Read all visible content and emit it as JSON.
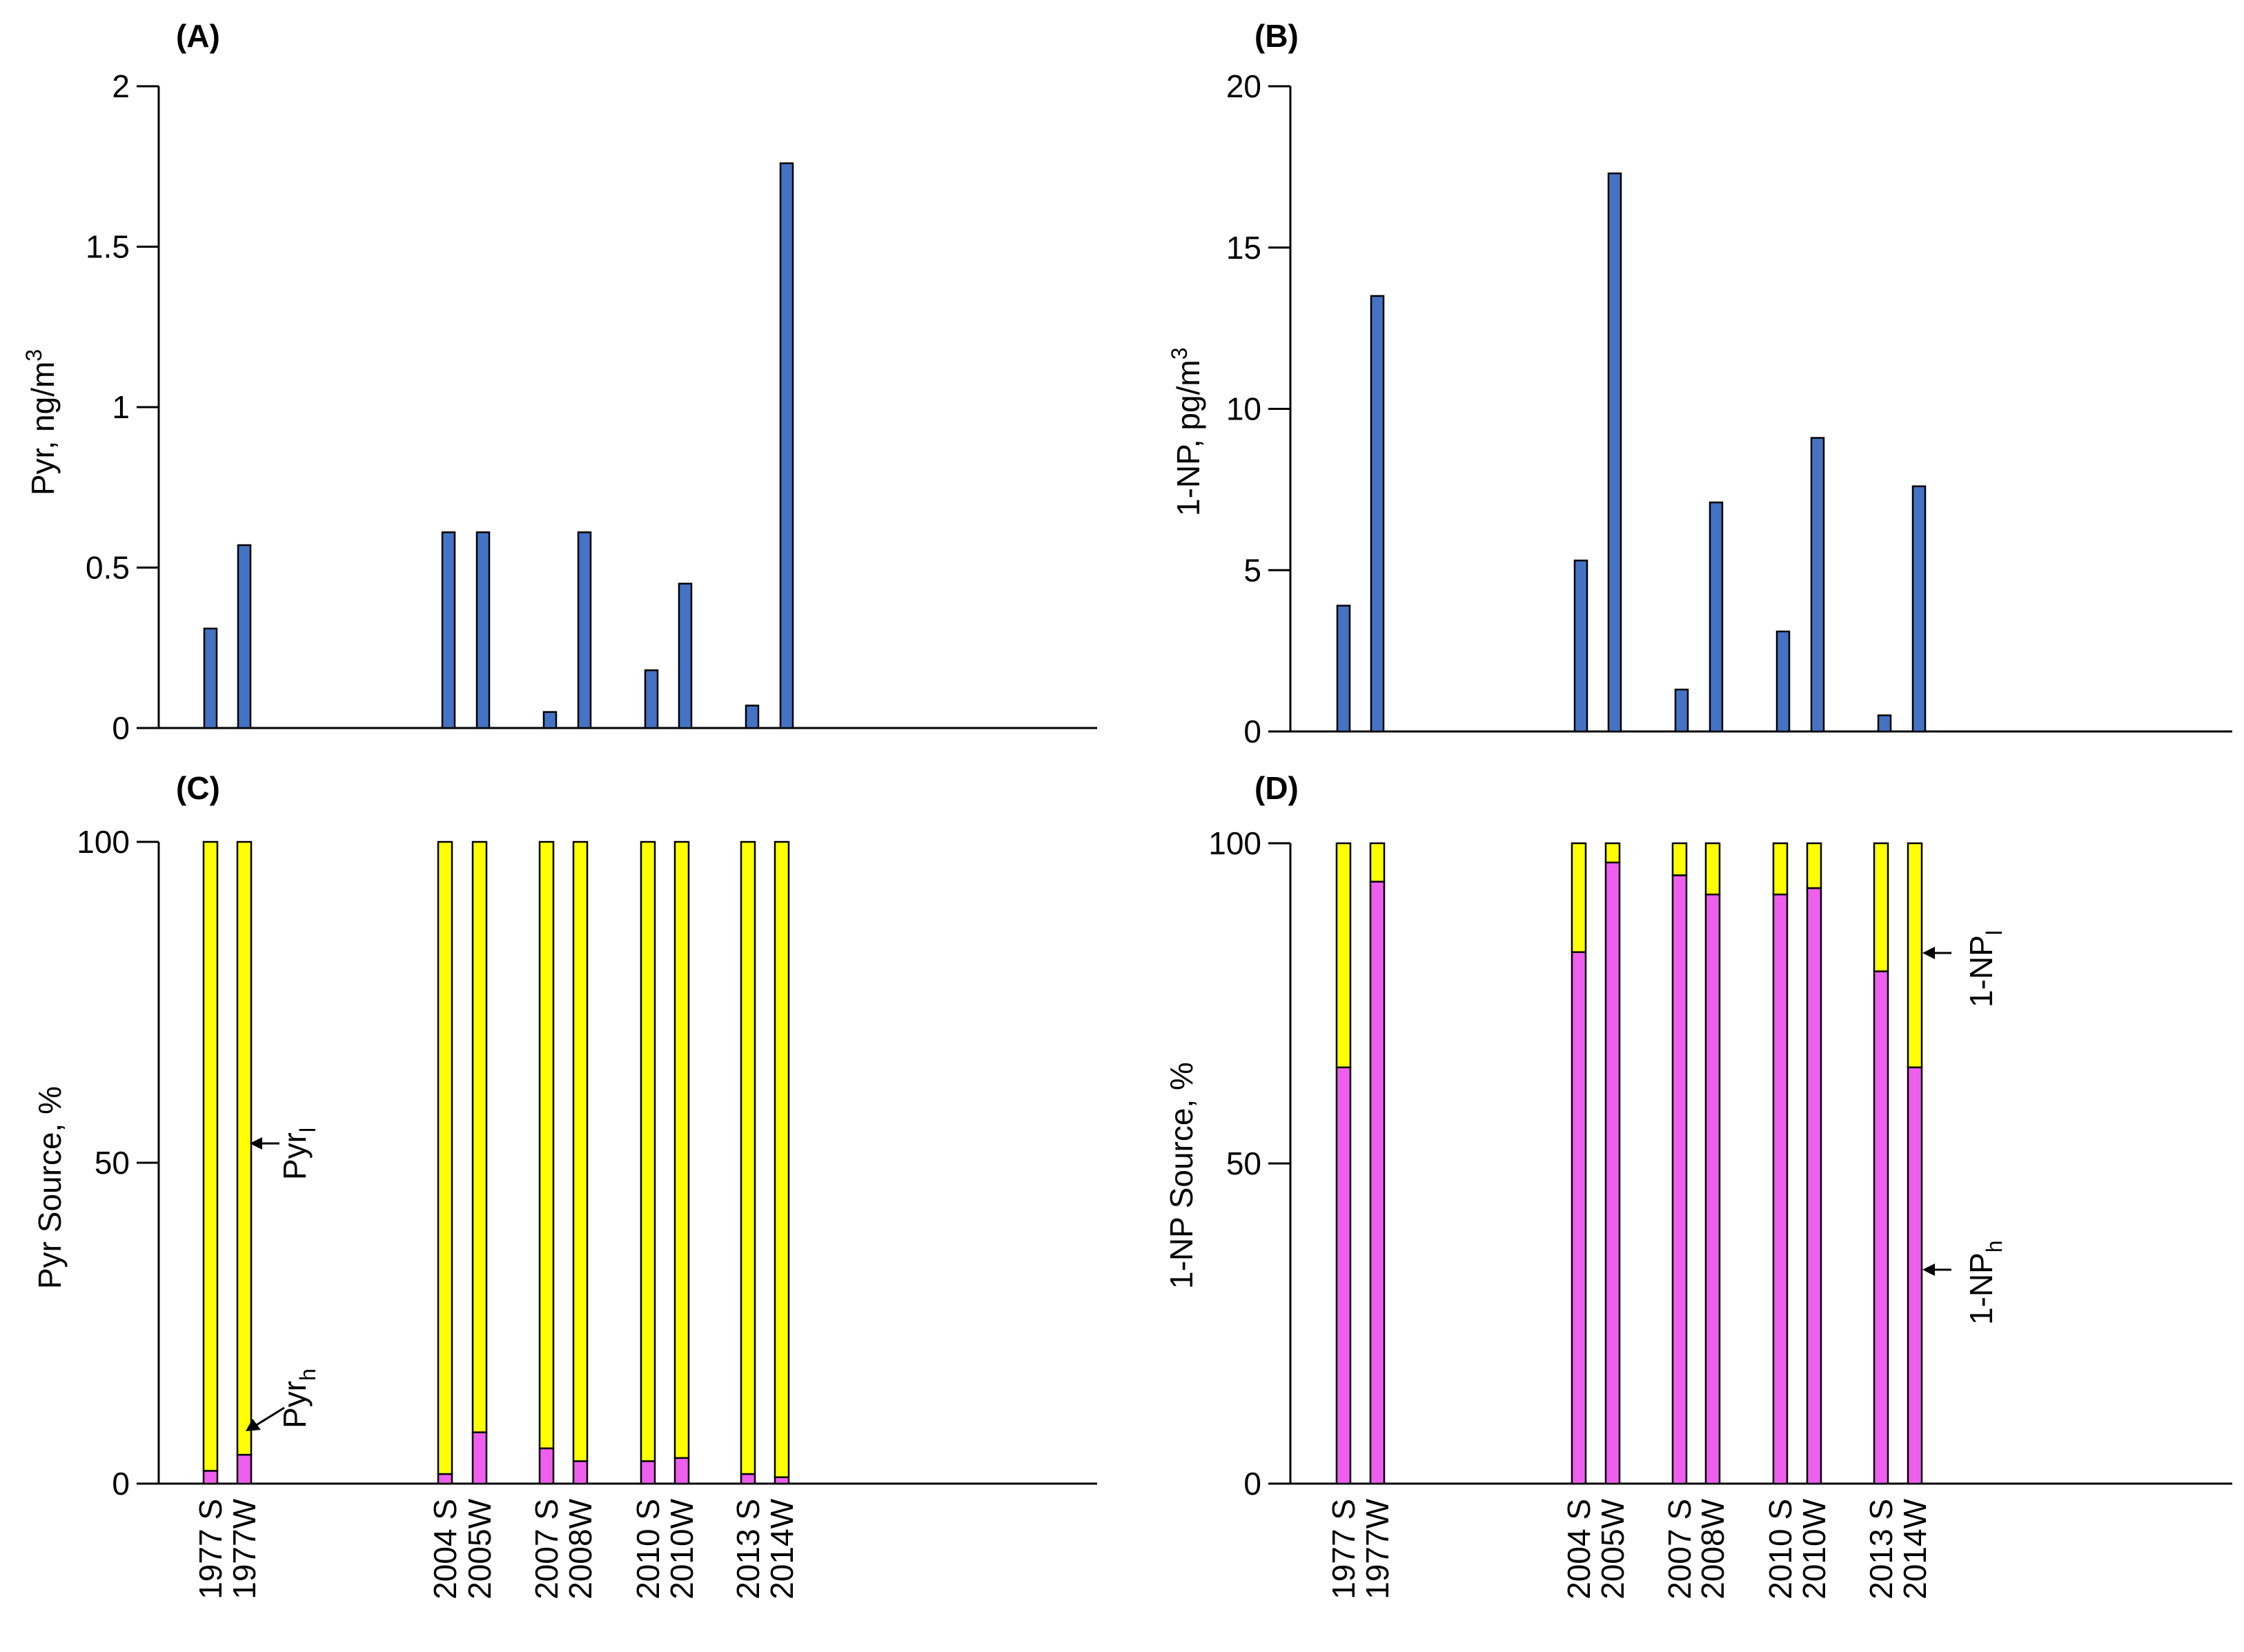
{
  "colors": {
    "blue": "#4472C4",
    "pink": "#EE5FEE",
    "yellow": "#FFFF00"
  },
  "categories": [
    "1977 S",
    "1977W",
    "2004 S",
    "2005W",
    "2007 S",
    "2008W",
    "2010 S",
    "2010W",
    "2013 S",
    "2014W"
  ],
  "chart_data": [
    {
      "panel": "(A)",
      "type": "bar",
      "ylabel": "Pyr, ng/m",
      "ylabel_sup": "3",
      "ylim": [
        0,
        2
      ],
      "yticks": [
        "0",
        "0.5",
        "1",
        "1.5",
        "2"
      ],
      "categories": [
        "1977 S",
        "1977W",
        "2004 S",
        "2005W",
        "2007 S",
        "2008W",
        "2010 S",
        "2010W",
        "2013 S",
        "2014W"
      ],
      "values": [
        0.31,
        0.57,
        0.61,
        0.61,
        0.05,
        0.61,
        0.18,
        0.45,
        0.07,
        1.76
      ]
    },
    {
      "panel": "(B)",
      "type": "bar",
      "ylabel": "1-NP, pg/m",
      "ylabel_sup": "3",
      "ylim": [
        0,
        20
      ],
      "yticks": [
        "0",
        "5",
        "10",
        "15",
        "20"
      ],
      "categories": [
        "1977 S",
        "1977W",
        "2004 S",
        "2005W",
        "2007 S",
        "2008W",
        "2010 S",
        "2010W",
        "2013 S",
        "2014W"
      ],
      "values": [
        3.9,
        13.5,
        5.3,
        17.3,
        1.3,
        7.1,
        3.1,
        9.1,
        0.5,
        7.6
      ]
    },
    {
      "panel": "(C)",
      "type": "bar",
      "stacked": true,
      "ylabel": "Pyr Source, %",
      "ylim": [
        0,
        100
      ],
      "yticks": [
        "0",
        "50",
        "100"
      ],
      "categories": [
        "1977 S",
        "1977W",
        "2004 S",
        "2005W",
        "2007 S",
        "2008W",
        "2010 S",
        "2010W",
        "2013 S",
        "2014W"
      ],
      "series": [
        {
          "name": "Pyr_h",
          "values": [
            2,
            4.5,
            1.5,
            8,
            5.5,
            3.5,
            3.5,
            4,
            1.5,
            1
          ]
        },
        {
          "name": "Pyr_l",
          "values": [
            98,
            95.5,
            98.5,
            92,
            94.5,
            96.5,
            96.5,
            96,
            98.5,
            99
          ]
        }
      ],
      "annotations": {
        "upper": {
          "base": "Pyr",
          "sub": "l"
        },
        "lower": {
          "base": "Pyr",
          "sub": "h"
        }
      }
    },
    {
      "panel": "(D)",
      "type": "bar",
      "stacked": true,
      "ylabel": "1-NP Source, %",
      "ylim": [
        0,
        100
      ],
      "yticks": [
        "0",
        "50",
        "100"
      ],
      "categories": [
        "1977 S",
        "1977W",
        "2004 S",
        "2005W",
        "2007 S",
        "2008W",
        "2010 S",
        "2010W",
        "2013 S",
        "2014W"
      ],
      "series": [
        {
          "name": "1-NP_h",
          "values": [
            65,
            94,
            83,
            97,
            95,
            92,
            92,
            93,
            80,
            65
          ]
        },
        {
          "name": "1-NP_l",
          "values": [
            35,
            6,
            17,
            3,
            5,
            8,
            8,
            7,
            20,
            35
          ]
        }
      ],
      "annotations": {
        "upper": {
          "base": "1-NP",
          "sub": "l"
        },
        "lower": {
          "base": "1-NP",
          "sub": "h"
        }
      }
    }
  ]
}
